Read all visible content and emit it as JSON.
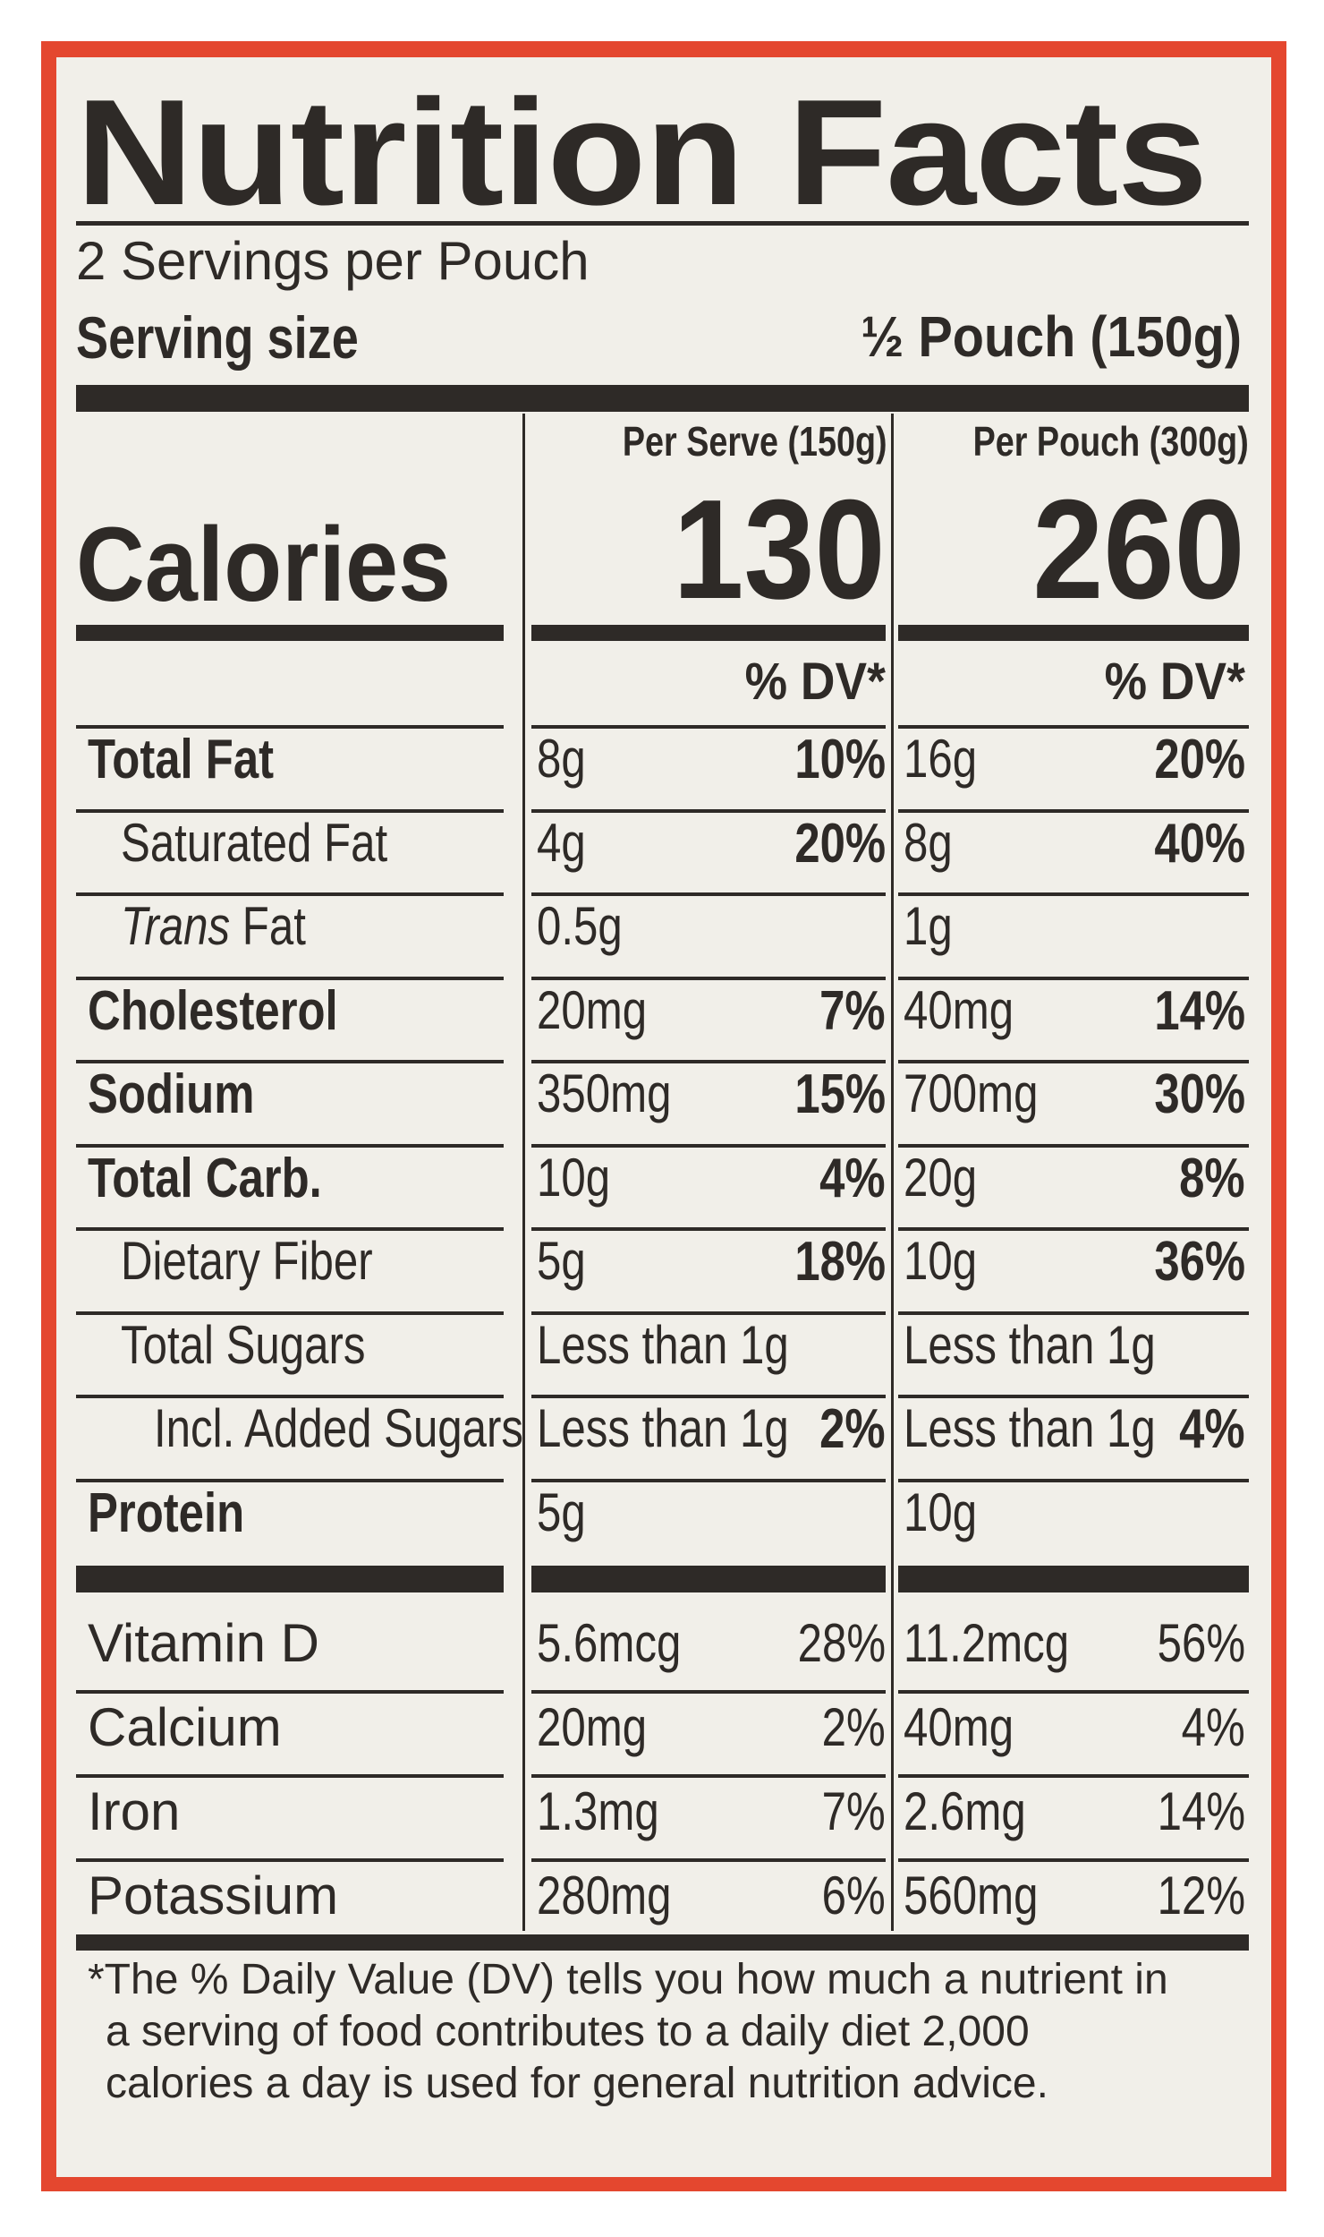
{
  "title": "Nutrition Facts",
  "servings_per_container": "2 Servings per Pouch",
  "serving_size": {
    "label": "Serving size",
    "value": "½ Pouch (150g)"
  },
  "columns": [
    {
      "header": "Per Serve (150g)",
      "calories": "130",
      "dv_label": "% DV*"
    },
    {
      "header": "Per Pouch (300g)",
      "calories": "260",
      "dv_label": "% DV*"
    }
  ],
  "calories_label": "Calories",
  "nutrients": [
    {
      "name": "Total Fat",
      "bold": true,
      "indent": 0,
      "serve": {
        "amount": "8g",
        "dv": "10%"
      },
      "pouch": {
        "amount": "16g",
        "dv": "20%"
      }
    },
    {
      "name": "Saturated Fat",
      "bold": false,
      "indent": 1,
      "serve": {
        "amount": "4g",
        "dv": "20%"
      },
      "pouch": {
        "amount": "8g",
        "dv": "40%"
      }
    },
    {
      "name_prefix": "Trans",
      "name": " Fat",
      "bold": false,
      "indent": 1,
      "serve": {
        "amount": "0.5g",
        "dv": ""
      },
      "pouch": {
        "amount": "1g",
        "dv": ""
      }
    },
    {
      "name": "Cholesterol",
      "bold": true,
      "indent": 0,
      "serve": {
        "amount": "20mg",
        "dv": "7%"
      },
      "pouch": {
        "amount": "40mg",
        "dv": "14%"
      }
    },
    {
      "name": "Sodium",
      "bold": true,
      "indent": 0,
      "serve": {
        "amount": "350mg",
        "dv": "15%"
      },
      "pouch": {
        "amount": "700mg",
        "dv": "30%"
      }
    },
    {
      "name": "Total Carb.",
      "bold": true,
      "indent": 0,
      "serve": {
        "amount": "10g",
        "dv": "4%"
      },
      "pouch": {
        "amount": "20g",
        "dv": "8%"
      }
    },
    {
      "name": "Dietary Fiber",
      "bold": false,
      "indent": 1,
      "serve": {
        "amount": "5g",
        "dv": "18%"
      },
      "pouch": {
        "amount": "10g",
        "dv": "36%"
      }
    },
    {
      "name": "Total Sugars",
      "bold": false,
      "indent": 1,
      "serve": {
        "amount": "Less than 1g",
        "dv": ""
      },
      "pouch": {
        "amount": "Less than 1g",
        "dv": ""
      }
    },
    {
      "name": "Incl. Added Sugars",
      "bold": false,
      "indent": 2,
      "serve": {
        "amount": "Less than 1g",
        "dv": "2%"
      },
      "pouch": {
        "amount": "Less than 1g",
        "dv": "4%"
      }
    },
    {
      "name": "Protein",
      "bold": true,
      "indent": 0,
      "serve": {
        "amount": "5g",
        "dv": ""
      },
      "pouch": {
        "amount": "10g",
        "dv": ""
      }
    }
  ],
  "vitamins": [
    {
      "name": "Vitamin D",
      "serve": {
        "amount": "5.6mcg",
        "dv": "28%"
      },
      "pouch": {
        "amount": "11.2mcg",
        "dv": "56%"
      }
    },
    {
      "name": "Calcium",
      "serve": {
        "amount": "20mg",
        "dv": "2%"
      },
      "pouch": {
        "amount": "40mg",
        "dv": "4%"
      }
    },
    {
      "name": "Iron",
      "serve": {
        "amount": "1.3mg",
        "dv": "7%"
      },
      "pouch": {
        "amount": "2.6mg",
        "dv": "14%"
      }
    },
    {
      "name": "Potassium",
      "serve": {
        "amount": "280mg",
        "dv": "6%"
      },
      "pouch": {
        "amount": "560mg",
        "dv": "12%"
      }
    }
  ],
  "footnote": [
    "*The % Daily Value (DV) tells you how much a nutrient in",
    "a serving of food contributes to a daily diet 2,000",
    "calories a day is used for general nutrition advice."
  ],
  "colors": {
    "ink": "#2e2a27",
    "panel": "#f1efe9",
    "border": "#e4472f"
  }
}
